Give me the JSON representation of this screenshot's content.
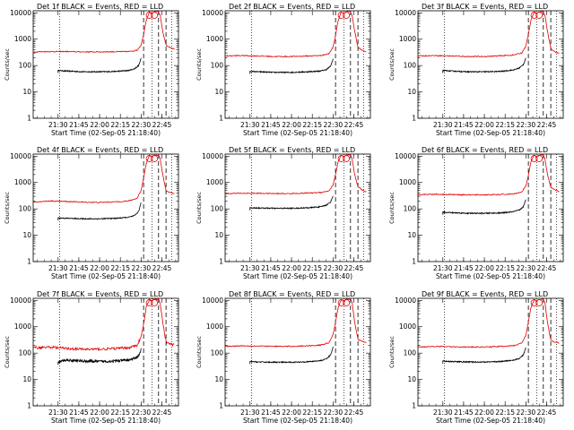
{
  "page": {
    "background": "#ffffff"
  },
  "colors": {
    "events": "#000000",
    "lld": "#e00000",
    "axis": "#000000"
  },
  "xaxis_common": {
    "ticks": [
      "21:30",
      "21:45",
      "22:00",
      "22:15",
      "22:30",
      "22:45"
    ],
    "tick_hours": [
      21.5,
      21.75,
      22.0,
      22.25,
      22.5,
      22.75
    ],
    "xlim_hours": [
      21.2,
      22.95
    ],
    "label": "Start Time (02-Sep-05 21:18:40)"
  },
  "yaxis_common": {
    "label": "Counts/sec",
    "scale": "log",
    "ylim": [
      1,
      12000
    ],
    "ticks": [
      "1",
      "10",
      "100",
      "1000",
      "10000"
    ],
    "tick_values": [
      1,
      10,
      100,
      1000,
      10000
    ]
  },
  "marker_lines": {
    "dotted_hours": [
      21.52,
      22.63,
      22.87
    ],
    "dashed_hours": [
      22.53,
      22.71,
      22.8
    ]
  },
  "chart_data": [
    {
      "type": "line",
      "title": "Det 1f BLACK = Events, RED = LLD",
      "series": [
        {
          "name": "Events",
          "color": "#000000",
          "x": [
            21.5,
            21.6,
            21.8,
            22.0,
            22.2,
            22.35,
            22.42,
            22.47,
            22.49,
            22.5
          ],
          "y": [
            65,
            62,
            58,
            58,
            60,
            65,
            75,
            100,
            150,
            190
          ]
        },
        {
          "name": "LLD",
          "color": "#e00000",
          "x": [
            21.2,
            21.4,
            21.6,
            21.8,
            22.0,
            22.2,
            22.35,
            22.45,
            22.5,
            22.53,
            22.56,
            22.6,
            22.63,
            22.66,
            22.68,
            22.71,
            22.73,
            22.76,
            22.8,
            22.85,
            22.9
          ],
          "y": [
            330,
            340,
            340,
            330,
            330,
            335,
            340,
            380,
            600,
            1500,
            5000,
            11000,
            9000,
            11000,
            11000,
            11000,
            8000,
            2000,
            600,
            480,
            420
          ]
        }
      ]
    },
    {
      "type": "line",
      "title": "Det 2f BLACK = Events, RED = LLD",
      "series": [
        {
          "name": "Events",
          "color": "#000000",
          "x": [
            21.5,
            21.6,
            21.8,
            22.0,
            22.2,
            22.35,
            22.42,
            22.47,
            22.49,
            22.5
          ],
          "y": [
            60,
            58,
            55,
            55,
            58,
            62,
            70,
            95,
            140,
            180
          ]
        },
        {
          "name": "LLD",
          "color": "#e00000",
          "x": [
            21.2,
            21.4,
            21.6,
            21.8,
            22.0,
            22.2,
            22.35,
            22.45,
            22.5,
            22.53,
            22.56,
            22.6,
            22.63,
            22.66,
            22.68,
            22.71,
            22.73,
            22.76,
            22.8,
            22.85,
            22.9
          ],
          "y": [
            230,
            240,
            230,
            220,
            220,
            230,
            240,
            280,
            500,
            1400,
            5000,
            11000,
            9000,
            11000,
            11000,
            11000,
            8000,
            2000,
            500,
            380,
            320
          ]
        }
      ]
    },
    {
      "type": "line",
      "title": "Det 3f BLACK = Events, RED = LLD",
      "series": [
        {
          "name": "Events",
          "color": "#000000",
          "x": [
            21.5,
            21.6,
            21.8,
            22.0,
            22.2,
            22.35,
            22.42,
            22.47,
            22.49,
            22.5
          ],
          "y": [
            65,
            62,
            58,
            58,
            60,
            68,
            80,
            110,
            160,
            200
          ]
        },
        {
          "name": "LLD",
          "color": "#e00000",
          "x": [
            21.2,
            21.4,
            21.6,
            21.8,
            22.0,
            22.2,
            22.35,
            22.45,
            22.5,
            22.53,
            22.56,
            22.6,
            22.63,
            22.66,
            22.68,
            22.71,
            22.73,
            22.76,
            22.8,
            22.85,
            22.9
          ],
          "y": [
            230,
            240,
            230,
            220,
            220,
            235,
            250,
            300,
            550,
            1500,
            5000,
            11000,
            9000,
            11000,
            11000,
            11000,
            8000,
            2000,
            450,
            330,
            290
          ]
        }
      ]
    },
    {
      "type": "line",
      "title": "Det 4f BLACK = Events, RED = LLD",
      "series": [
        {
          "name": "Events",
          "color": "#000000",
          "x": [
            21.5,
            21.6,
            21.8,
            22.0,
            22.2,
            22.35,
            22.42,
            22.47,
            22.49,
            22.5
          ],
          "y": [
            45,
            44,
            42,
            42,
            44,
            48,
            55,
            80,
            130,
            180
          ]
        },
        {
          "name": "LLD",
          "color": "#e00000",
          "x": [
            21.2,
            21.4,
            21.6,
            21.8,
            22.0,
            22.2,
            22.35,
            22.45,
            22.5,
            22.53,
            22.56,
            22.6,
            22.63,
            22.66,
            22.68,
            22.71,
            22.73,
            22.76,
            22.8,
            22.85,
            22.9
          ],
          "y": [
            180,
            200,
            190,
            180,
            175,
            185,
            200,
            250,
            500,
            1500,
            5000,
            11000,
            9000,
            11000,
            11000,
            11000,
            8000,
            2000,
            480,
            420,
            380
          ]
        }
      ]
    },
    {
      "type": "line",
      "title": "Det 5f BLACK = Events, RED = LLD",
      "series": [
        {
          "name": "Events",
          "color": "#000000",
          "x": [
            21.5,
            21.6,
            21.8,
            22.0,
            22.2,
            22.35,
            22.42,
            22.47,
            22.49,
            22.5
          ],
          "y": [
            110,
            108,
            105,
            105,
            110,
            120,
            140,
            180,
            260,
            320
          ]
        },
        {
          "name": "LLD",
          "color": "#e00000",
          "x": [
            21.2,
            21.4,
            21.6,
            21.8,
            22.0,
            22.2,
            22.35,
            22.45,
            22.5,
            22.53,
            22.56,
            22.6,
            22.63,
            22.66,
            22.68,
            22.71,
            22.73,
            22.76,
            22.8,
            22.85,
            22.9
          ],
          "y": [
            380,
            390,
            390,
            380,
            380,
            400,
            420,
            480,
            800,
            2000,
            6000,
            11000,
            9000,
            11000,
            11000,
            11000,
            8000,
            2000,
            700,
            520,
            450
          ]
        }
      ]
    },
    {
      "type": "line",
      "title": "Det 6f BLACK = Events, RED = LLD",
      "series": [
        {
          "name": "Events",
          "color": "#000000",
          "x": [
            21.5,
            21.6,
            21.8,
            22.0,
            22.2,
            22.35,
            22.42,
            22.47,
            22.49,
            22.5
          ],
          "y": [
            75,
            72,
            68,
            68,
            70,
            78,
            90,
            120,
            180,
            230
          ]
        },
        {
          "name": "LLD",
          "color": "#e00000",
          "x": [
            21.2,
            21.4,
            21.6,
            21.8,
            22.0,
            22.2,
            22.35,
            22.45,
            22.5,
            22.53,
            22.56,
            22.6,
            22.63,
            22.66,
            22.68,
            22.71,
            22.73,
            22.76,
            22.8,
            22.85,
            22.9
          ],
          "y": [
            350,
            360,
            350,
            340,
            340,
            350,
            370,
            430,
            750,
            1800,
            6000,
            11000,
            9000,
            11000,
            11000,
            11000,
            8000,
            2000,
            650,
            520,
            450
          ]
        }
      ]
    },
    {
      "type": "line",
      "title": "Det 7f BLACK = Events, RED = LLD",
      "series": [
        {
          "name": "Events",
          "color": "#000000",
          "x": [
            21.5,
            21.6,
            21.8,
            22.0,
            22.2,
            22.35,
            22.42,
            22.47,
            22.49,
            22.5
          ],
          "y": [
            45,
            55,
            50,
            48,
            50,
            55,
            62,
            80,
            110,
            140
          ]
        },
        {
          "name": "LLD",
          "color": "#e00000",
          "x": [
            21.2,
            21.4,
            21.6,
            21.8,
            22.0,
            22.2,
            22.35,
            22.45,
            22.5,
            22.53,
            22.56,
            22.6,
            22.63,
            22.66,
            22.68,
            22.71,
            22.73,
            22.76,
            22.8,
            22.85,
            22.9
          ],
          "y": [
            160,
            170,
            150,
            140,
            140,
            150,
            160,
            200,
            400,
            1200,
            5000,
            11000,
            9000,
            11000,
            11000,
            11000,
            8000,
            1500,
            260,
            220,
            200
          ]
        }
      ]
    },
    {
      "type": "line",
      "title": "Det 8f BLACK = Events, RED = LLD",
      "series": [
        {
          "name": "Events",
          "color": "#000000",
          "x": [
            21.5,
            21.6,
            21.8,
            22.0,
            22.2,
            22.35,
            22.42,
            22.47,
            22.49,
            22.5
          ],
          "y": [
            48,
            46,
            45,
            45,
            47,
            52,
            60,
            85,
            130,
            170
          ]
        },
        {
          "name": "LLD",
          "color": "#e00000",
          "x": [
            21.2,
            21.4,
            21.6,
            21.8,
            22.0,
            22.2,
            22.35,
            22.45,
            22.5,
            22.53,
            22.56,
            22.6,
            22.63,
            22.66,
            22.68,
            22.71,
            22.73,
            22.76,
            22.8,
            22.85,
            22.9
          ],
          "y": [
            180,
            190,
            185,
            180,
            180,
            190,
            200,
            250,
            500,
            1500,
            5000,
            11000,
            9000,
            11000,
            11000,
            11000,
            8000,
            1500,
            330,
            280,
            250
          ]
        }
      ]
    },
    {
      "type": "line",
      "title": "Det 9f BLACK = Events, RED = LLD",
      "series": [
        {
          "name": "Events",
          "color": "#000000",
          "x": [
            21.5,
            21.6,
            21.8,
            22.0,
            22.2,
            22.35,
            22.42,
            22.47,
            22.49,
            22.5
          ],
          "y": [
            50,
            48,
            46,
            46,
            48,
            54,
            62,
            85,
            130,
            170
          ]
        },
        {
          "name": "LLD",
          "color": "#e00000",
          "x": [
            21.2,
            21.4,
            21.6,
            21.8,
            22.0,
            22.2,
            22.35,
            22.45,
            22.5,
            22.53,
            22.56,
            22.6,
            22.63,
            22.66,
            22.68,
            22.71,
            22.73,
            22.76,
            22.8,
            22.85,
            22.9
          ],
          "y": [
            170,
            180,
            175,
            170,
            170,
            180,
            190,
            240,
            480,
            1500,
            5000,
            11000,
            9000,
            11000,
            11000,
            11000,
            8000,
            1500,
            300,
            260,
            240
          ]
        }
      ]
    }
  ]
}
